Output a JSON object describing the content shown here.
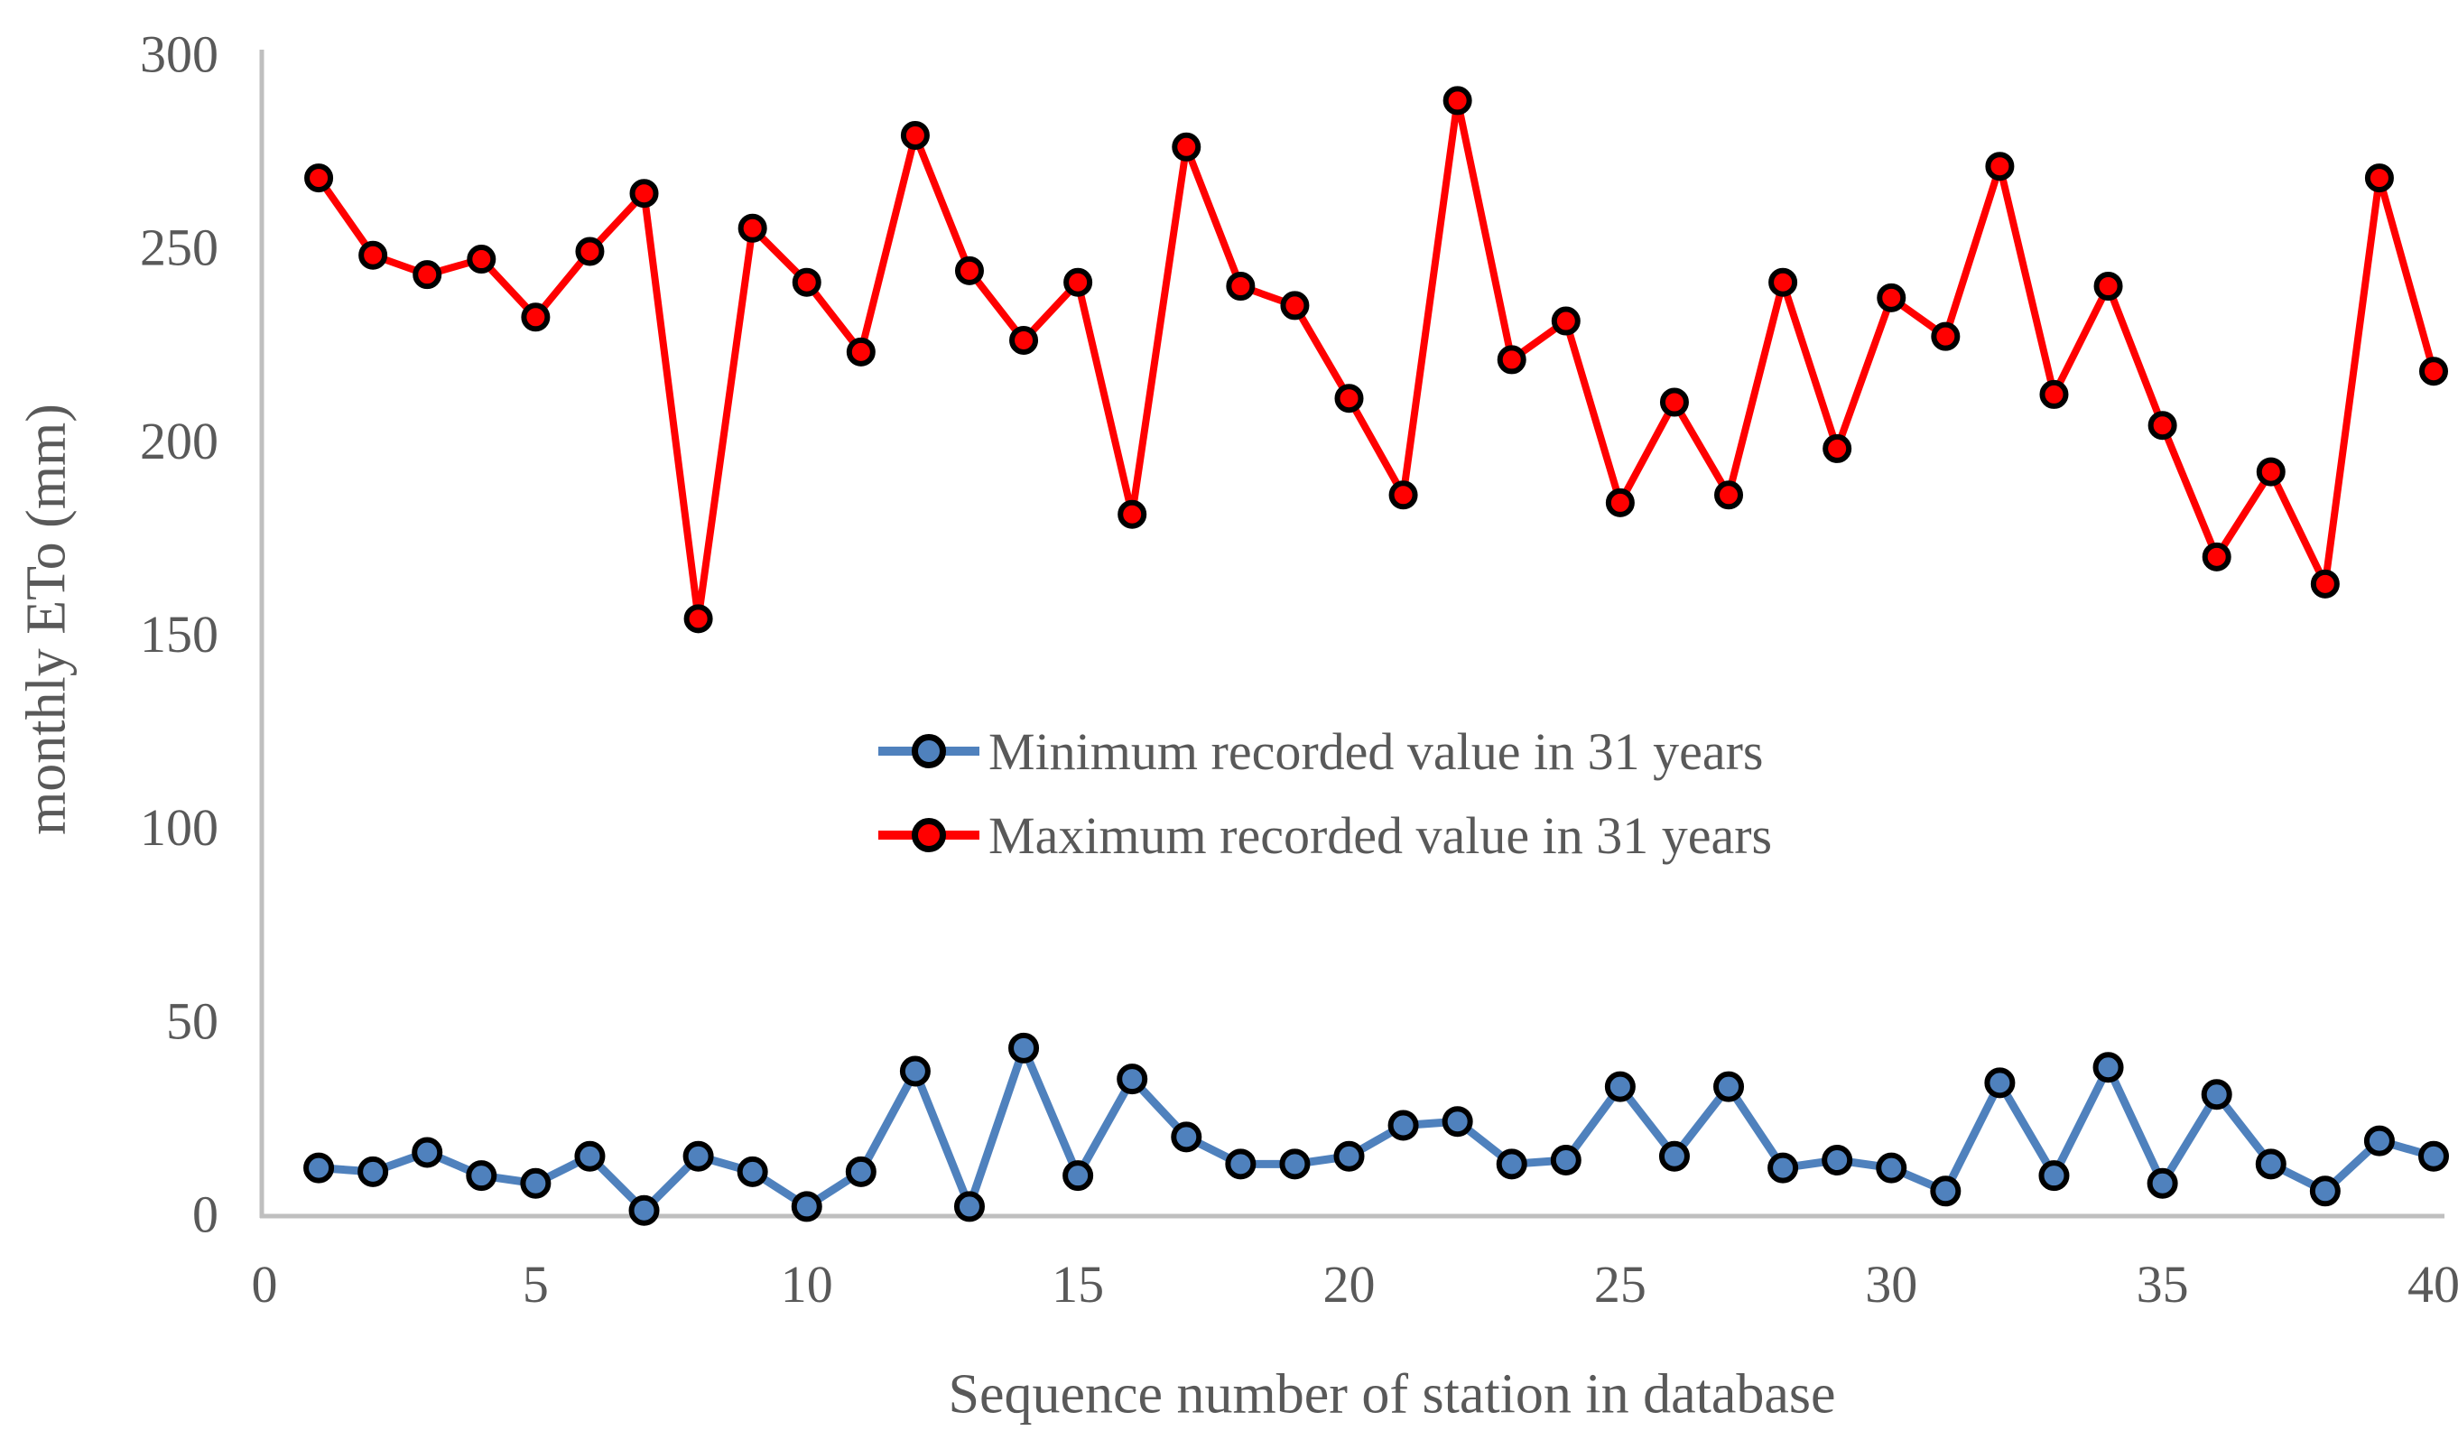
{
  "figure": {
    "background": "#FFFFFF"
  },
  "colors": {
    "min_series": "#4F81BD",
    "max_series": "#FF0000",
    "marker_outline": "#000000",
    "axis_line": "#BFBFBF",
    "text": "#595959"
  },
  "legend": {
    "items": [
      {
        "label": "Minimum recorded value in 31 years",
        "color": "#4F81BD"
      },
      {
        "label": "Maximum recorded value in 31 years",
        "color": "#FF0000"
      }
    ]
  },
  "chart_data": {
    "type": "line",
    "title": "",
    "xlabel": "Sequence number of station in database",
    "ylabel": "monthly ETo (mm)",
    "xlim": [
      0,
      40
    ],
    "ylim": [
      0,
      300
    ],
    "x_ticks": [
      0,
      5,
      10,
      15,
      20,
      25,
      30,
      35,
      40
    ],
    "y_ticks": [
      300,
      250,
      200,
      150,
      100,
      50,
      0
    ],
    "grid": false,
    "legend_position": "center-inside",
    "x": [
      1,
      2,
      3,
      4,
      5,
      6,
      7,
      8,
      9,
      10,
      11,
      12,
      13,
      14,
      15,
      16,
      17,
      18,
      19,
      20,
      21,
      22,
      23,
      24,
      25,
      26,
      27,
      28,
      29,
      30,
      31,
      32,
      33,
      34,
      35,
      36,
      37,
      38,
      39,
      40
    ],
    "series": [
      {
        "name": "Minimum recorded value in 31 years",
        "color": "#4F81BD",
        "values": [
          12,
          11,
          16,
          10,
          8,
          15,
          1,
          15,
          11,
          2,
          11,
          37,
          2,
          43,
          10,
          35,
          20,
          13,
          13,
          15,
          23,
          24,
          13,
          14,
          33,
          15,
          33,
          12,
          14,
          12,
          6,
          34,
          10,
          38,
          8,
          31,
          13,
          6,
          19,
          15
        ]
      },
      {
        "name": "Maximum recorded value in 31 years",
        "color": "#FF0000",
        "values": [
          268,
          248,
          243,
          247,
          232,
          249,
          264,
          154,
          255,
          241,
          223,
          279,
          244,
          226,
          241,
          181,
          276,
          240,
          235,
          211,
          186,
          288,
          221,
          231,
          184,
          210,
          186,
          241,
          198,
          237,
          227,
          271,
          212,
          240,
          204,
          170,
          192,
          163,
          268,
          218
        ]
      }
    ]
  }
}
